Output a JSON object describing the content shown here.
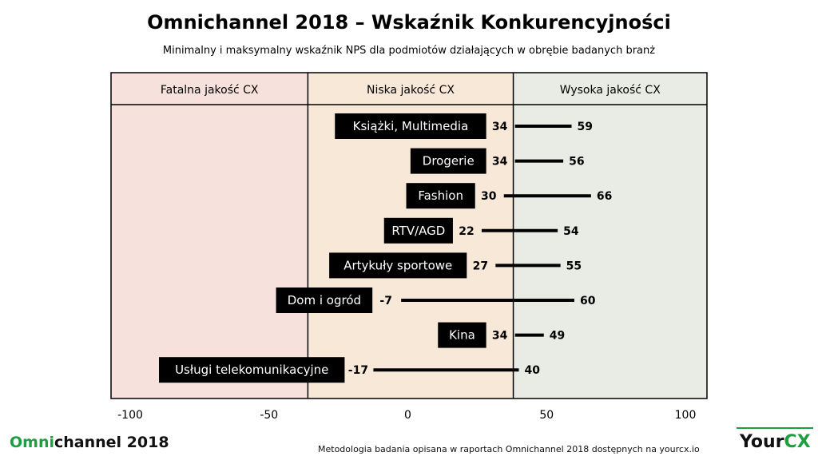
{
  "header": {
    "title": "Omnichannel 2018 – Wskaźnik Konkurencyjności",
    "subtitle": "Minimalny i maksymalny wskaźnik NPS dla podmiotów działających w obrębie badanych branż"
  },
  "footer": {
    "brand_prefix": "Omni",
    "brand_suffix": "channel 2018",
    "note": "Metodologia badania opisana w raportach Omnichannel 2018 dostępnych na yourcx.io",
    "logo_prefix": "Your",
    "logo_suffix": "CX"
  },
  "chart_data": {
    "type": "range-bar",
    "xlim": [
      -100,
      100
    ],
    "x_ticks": [
      "-100",
      "-50",
      "0",
      "50",
      "100"
    ],
    "zones": [
      {
        "label": "Fatalna jakość CX",
        "from": -100,
        "to": -36,
        "color": "#f6e1dc"
      },
      {
        "label": "Niska jakość CX",
        "from": -36,
        "to": 38,
        "color": "#f8e8d8"
      },
      {
        "label": "Wysoka jakość CX",
        "from": 38,
        "to": 100,
        "color": "#e8ece4"
      }
    ],
    "categories": [
      "Książki, Multimedia",
      "Drogerie",
      "Fashion",
      "RTV/AGD",
      "Artykuły sportowe",
      "Dom i ogród",
      "Kina",
      "Usługi telekomunikacyjne"
    ],
    "min": [
      34,
      34,
      30,
      22,
      27,
      -7,
      34,
      -17
    ],
    "max": [
      59,
      56,
      66,
      54,
      55,
      60,
      49,
      40
    ],
    "min_labels": [
      "34",
      "34",
      "30",
      "22",
      "27",
      "-7",
      "34",
      "-17"
    ],
    "max_labels": [
      "59",
      "56",
      "66",
      "54",
      "55",
      "60",
      "49",
      "40"
    ],
    "colors": {
      "bar": "#000000",
      "label_box": "#000000",
      "label_text": "#ffffff"
    }
  }
}
